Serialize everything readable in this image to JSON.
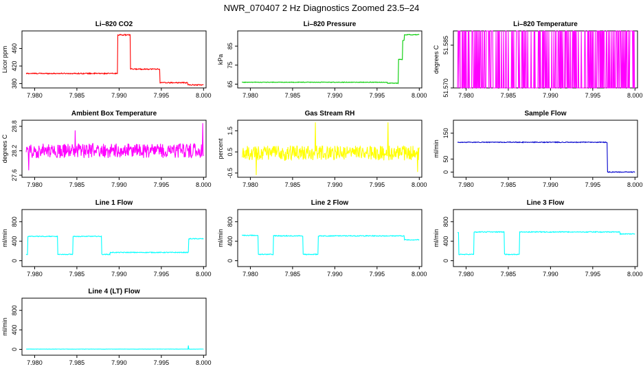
{
  "figure_title": "NWR_070407  2 Hz Diagnostics Zoomed 23.5–24",
  "chart_data": [
    {
      "id": "co2",
      "type": "line",
      "title": "Li–820 CO2",
      "ylabel": "Licor ppm",
      "color": "#ff0000",
      "xlim": [
        7.9785,
        8.0003
      ],
      "ylim": [
        370,
        500
      ],
      "xticks": [
        "7.980",
        "7.985",
        "7.990",
        "7.995",
        "8.000"
      ],
      "yticks": [
        "380",
        "420",
        "460"
      ],
      "ytick_values": [
        380,
        420,
        460
      ],
      "series": [
        {
          "name": "CO2",
          "segments": [
            [
              7.979,
              7.9898,
              403
            ],
            [
              7.9898,
              7.9913,
              491
            ],
            [
              7.9913,
              7.9948,
              413
            ],
            [
              7.9948,
              7.9981,
              382
            ],
            [
              7.9981,
              8.0,
              377
            ]
          ],
          "noise": 1.2
        }
      ]
    },
    {
      "id": "pressure",
      "type": "line",
      "title": "Li–820 Pressure",
      "ylabel": "kPa",
      "color": "#00cc00",
      "xlim": [
        7.9785,
        8.0003
      ],
      "ylim": [
        63,
        93
      ],
      "xticks": [
        "7.980",
        "7.985",
        "7.990",
        "7.995",
        "8.000"
      ],
      "yticks": [
        "65",
        "75",
        "85"
      ],
      "ytick_values": [
        65,
        75,
        85
      ],
      "series": [
        {
          "name": "Pressure",
          "segments": [
            [
              7.979,
              7.9962,
              66
            ],
            [
              7.9962,
              7.9975,
              65.5
            ],
            [
              7.9975,
              7.998,
              78
            ],
            [
              7.998,
              7.9982,
              88
            ],
            [
              7.9982,
              8.0,
              91
            ]
          ],
          "noise": 0.15
        }
      ]
    },
    {
      "id": "temp",
      "type": "line",
      "title": "Li–820 Temperature",
      "ylabel": "degrees C",
      "color": "#ff00ff",
      "xlim": [
        7.9785,
        8.0003
      ],
      "ylim": [
        51.57,
        51.59
      ],
      "xticks": [
        "7.980",
        "7.985",
        "7.990",
        "7.995",
        "8.000"
      ],
      "yticks": [
        "51.570",
        "51.585"
      ],
      "ytick_values": [
        51.57,
        51.585
      ],
      "series": [
        {
          "name": "Temperature",
          "levels": [
            51.57,
            51.59
          ],
          "switch_prob": 0.35
        }
      ]
    },
    {
      "id": "ambient",
      "type": "line",
      "title": "Ambient Box Temperature",
      "ylabel": "degrees C",
      "color": "#ff00ff",
      "xlim": [
        7.9785,
        8.0003
      ],
      "ylim": [
        27.55,
        28.95
      ],
      "xticks": [
        "7.980",
        "7.985",
        "7.990",
        "7.995",
        "8.000"
      ],
      "yticks": [
        "27.6",
        "28.2",
        "28.8"
      ],
      "ytick_values": [
        27.6,
        28.2,
        28.8
      ],
      "series": [
        {
          "name": "Ambient",
          "segments": [
            [
              7.979,
              8.0,
              28.2
            ]
          ],
          "noise": 0.18,
          "spikes": [
            [
              7.9848,
              28.7
            ],
            [
              7.9999,
              28.88
            ],
            [
              7.9793,
              27.72
            ]
          ]
        }
      ]
    },
    {
      "id": "rh",
      "type": "line",
      "title": "Gas Stream RH",
      "ylabel": "percent",
      "color": "#ffff00",
      "xlim": [
        7.9785,
        8.0003
      ],
      "ylim": [
        -0.7,
        2.0
      ],
      "xticks": [
        "7.980",
        "7.985",
        "7.990",
        "7.995",
        "8.000"
      ],
      "yticks": [
        "-0.5",
        "0.5",
        "1.5"
      ],
      "ytick_values": [
        -0.5,
        0.5,
        1.5
      ],
      "series": [
        {
          "name": "RH",
          "segments": [
            [
              7.979,
              8.0,
              0.45
            ]
          ],
          "noise": 0.35,
          "spikes": [
            [
              7.9877,
              1.9
            ],
            [
              7.9963,
              1.9
            ],
            [
              7.9807,
              -0.6
            ],
            [
              7.9998,
              -0.45
            ]
          ]
        }
      ]
    },
    {
      "id": "sample",
      "type": "line",
      "title": "Sample Flow",
      "ylabel": "ml/min",
      "color": "#0000cc",
      "xlim": [
        7.9785,
        8.0003
      ],
      "ylim": [
        -20,
        200
      ],
      "xticks": [
        "7.980",
        "7.985",
        "7.990",
        "7.995",
        "8.000"
      ],
      "yticks": [
        "0",
        "50",
        "150"
      ],
      "ytick_values": [
        0,
        50,
        150
      ],
      "series": [
        {
          "name": "Sample Flow",
          "segments": [
            [
              7.979,
              7.9967,
              115
            ],
            [
              7.9967,
              8.0,
              0
            ]
          ],
          "noise": 1.5
        }
      ]
    },
    {
      "id": "line1",
      "type": "line",
      "title": "Line 1 Flow",
      "ylabel": "ml/min",
      "color": "#00ffff",
      "xlim": [
        7.9785,
        8.0003
      ],
      "ylim": [
        -120,
        1050
      ],
      "xticks": [
        "7.980",
        "7.985",
        "7.990",
        "7.995",
        "8.000"
      ],
      "yticks": [
        "0",
        "400",
        "800"
      ],
      "ytick_values": [
        0,
        400,
        800
      ],
      "series": [
        {
          "name": "Line 1",
          "segments": [
            [
              7.979,
              7.9792,
              130
            ],
            [
              7.9792,
              7.9827,
              500
            ],
            [
              7.9827,
              7.9845,
              130
            ],
            [
              7.9845,
              7.9879,
              500
            ],
            [
              7.9879,
              7.9889,
              130
            ],
            [
              7.9889,
              7.9982,
              170
            ],
            [
              7.9982,
              8.0,
              450
            ]
          ],
          "noise": 8
        }
      ]
    },
    {
      "id": "line2",
      "type": "line",
      "title": "Line 2 Flow",
      "ylabel": "ml/min",
      "color": "#00ffff",
      "xlim": [
        7.9785,
        8.0003
      ],
      "ylim": [
        -120,
        1050
      ],
      "xticks": [
        "7.980",
        "7.985",
        "7.990",
        "7.995",
        "8.000"
      ],
      "yticks": [
        "0",
        "400",
        "800"
      ],
      "ytick_values": [
        0,
        400,
        800
      ],
      "series": [
        {
          "name": "Line 2",
          "segments": [
            [
              7.979,
              7.9809,
              520
            ],
            [
              7.9809,
              7.9827,
              130
            ],
            [
              7.9827,
              7.9862,
              510
            ],
            [
              7.9862,
              7.988,
              130
            ],
            [
              7.988,
              7.9982,
              510
            ],
            [
              7.9982,
              8.0,
              430
            ]
          ],
          "noise": 9
        }
      ]
    },
    {
      "id": "line3",
      "type": "line",
      "title": "Line 3 Flow",
      "ylabel": "ml/min",
      "color": "#00ffff",
      "xlim": [
        7.9785,
        8.0003
      ],
      "ylim": [
        -120,
        1050
      ],
      "xticks": [
        "7.980",
        "7.985",
        "7.990",
        "7.995",
        "8.000"
      ],
      "yticks": [
        "0",
        "400",
        "800"
      ],
      "ytick_values": [
        0,
        400,
        800
      ],
      "series": [
        {
          "name": "Line 3",
          "segments": [
            [
              7.979,
              7.9791,
              580
            ],
            [
              7.9791,
              7.9809,
              130
            ],
            [
              7.9809,
              7.9845,
              590
            ],
            [
              7.9845,
              7.9863,
              130
            ],
            [
              7.9863,
              7.9982,
              590
            ],
            [
              7.9982,
              8.0,
              550
            ]
          ],
          "noise": 9
        }
      ]
    },
    {
      "id": "line4",
      "type": "line",
      "title": "Line 4 (LT) Flow",
      "ylabel": "ml/min",
      "color": "#00ffff",
      "xlim": [
        7.9785,
        8.0003
      ],
      "ylim": [
        -120,
        1050
      ],
      "xticks": [
        "7.980",
        "7.985",
        "7.990",
        "7.995",
        "8.000"
      ],
      "yticks": [
        "0",
        "400",
        "800"
      ],
      "ytick_values": [
        0,
        400,
        800
      ],
      "series": [
        {
          "name": "Line 4",
          "segments": [
            [
              7.979,
              8.0,
              5
            ]
          ],
          "noise": 2,
          "spikes": [
            [
              7.9982,
              80
            ]
          ]
        }
      ]
    }
  ]
}
